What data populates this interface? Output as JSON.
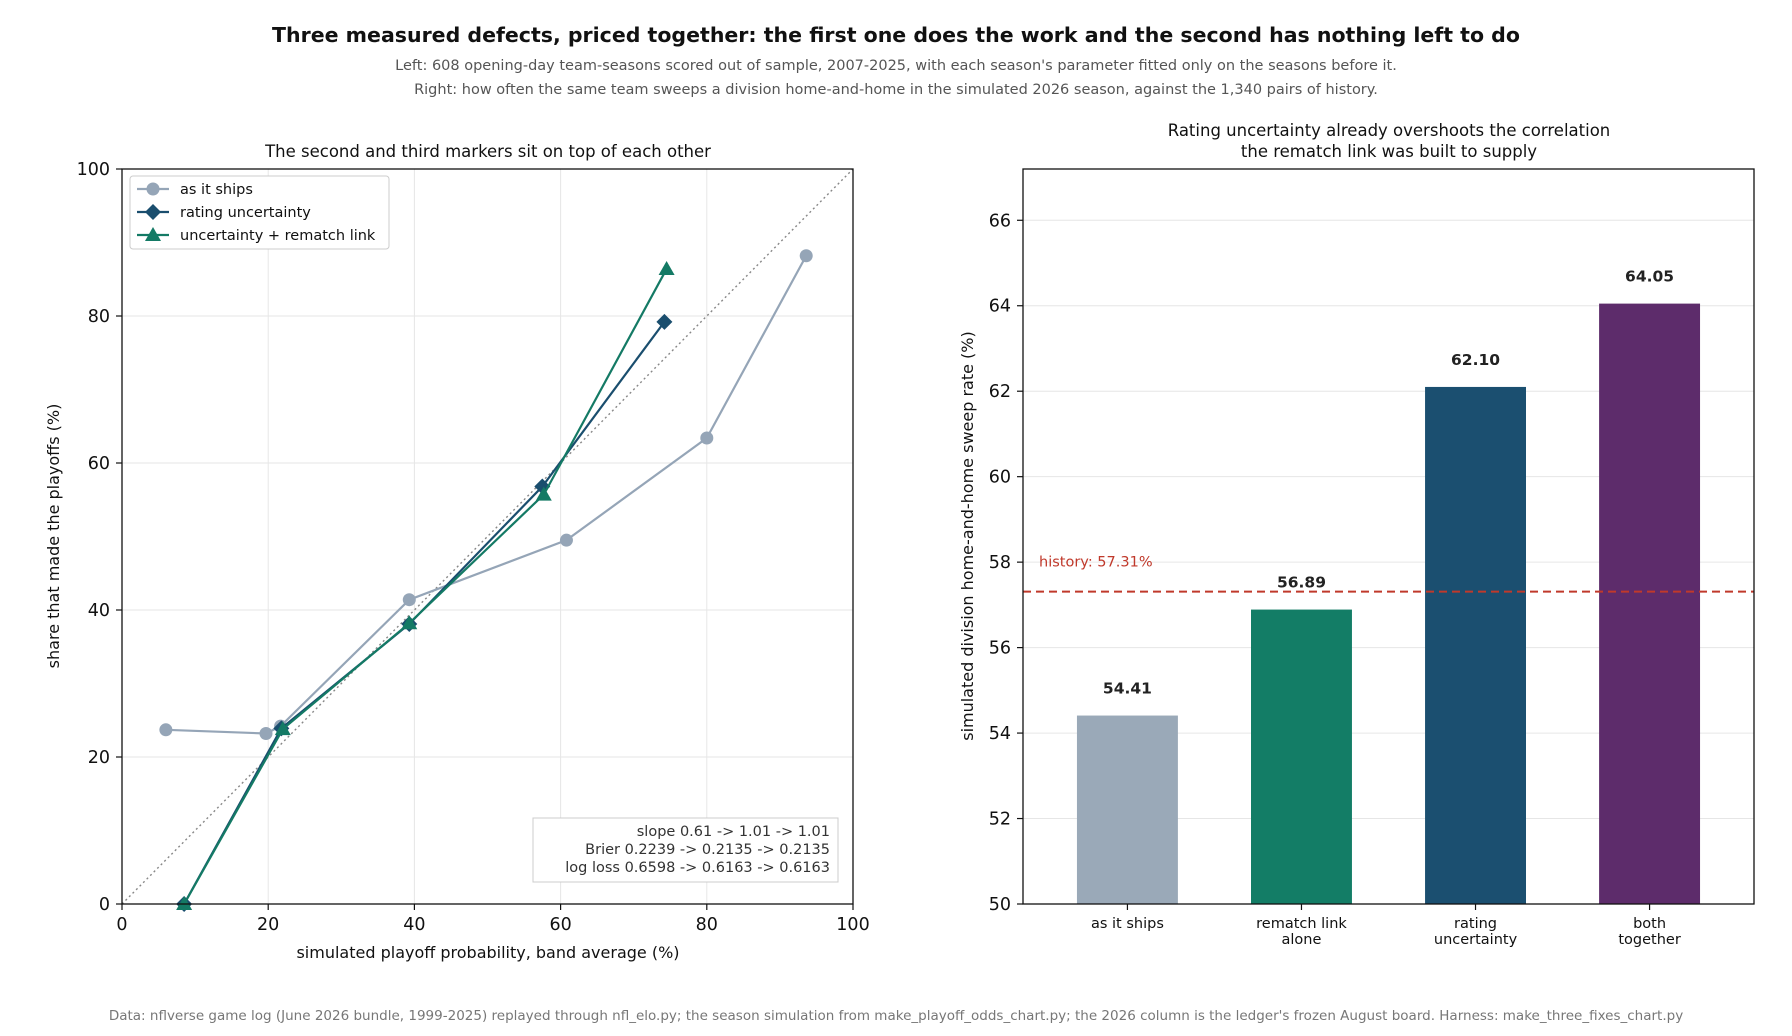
{
  "title": "Three measured defects, priced together: the first one does the work and the second has nothing left to do",
  "subtitle_1": "Left: 608 opening-day team-seasons scored out of sample, 2007-2025, with each season's parameter fitted only on the seasons before it.",
  "subtitle_2": "Right: how often the same team sweeps a division home-and-home in the simulated 2026 season, against the 1,340 pairs of history.",
  "footer": "Data: nflverse game log (June 2026 bundle, 1999-2025) replayed through nfl_elo.py; the season simulation from make_playoff_odds_chart.py; the 2026 column is the ledger's frozen August board. Harness: make_three_fixes_chart.py",
  "chart_data": [
    {
      "type": "line",
      "title": "The second and third markers sit on top of each other",
      "xlabel": "simulated playoff probability, band average (%)",
      "ylabel": "share that made the playoffs (%)",
      "xlim": [
        0,
        100
      ],
      "ylim": [
        0,
        100
      ],
      "xticks": [
        0,
        20,
        40,
        60,
        80,
        100
      ],
      "yticks": [
        0,
        20,
        40,
        60,
        80,
        100
      ],
      "grid": true,
      "legend_position": "top-left",
      "reference_line": "y = x, dotted",
      "series": [
        {
          "name": "as it ships",
          "color": "#95a5b7",
          "marker": "circle",
          "points": [
            [
              6,
              23.7
            ],
            [
              19.7,
              23.2
            ],
            [
              21.7,
              24.2
            ],
            [
              39.3,
              41.4
            ],
            [
              60.8,
              49.5
            ],
            [
              80,
              63.4
            ],
            [
              93.6,
              88.2
            ]
          ]
        },
        {
          "name": "rating uncertainty",
          "color": "#1a4e6e",
          "marker": "diamond",
          "points": [
            [
              8.5,
              0
            ],
            [
              21.8,
              23.9
            ],
            [
              39.3,
              38.1
            ],
            [
              57.5,
              56.8
            ],
            [
              74.2,
              79.2
            ]
          ]
        },
        {
          "name": "uncertainty + rematch link",
          "color": "#147a65",
          "marker": "triangle",
          "points": [
            [
              8.5,
              0
            ],
            [
              22,
              23.8
            ],
            [
              39.3,
              38.2
            ],
            [
              57.7,
              55.7
            ],
            [
              74.5,
              86.4
            ]
          ]
        }
      ],
      "annotation_lines": [
        "slope 0.61  ->  1.01  ->  1.01",
        "Brier 0.2239  ->  0.2135  ->  0.2135",
        "log loss 0.6598  ->  0.6163  ->  0.6163"
      ]
    },
    {
      "type": "bar",
      "title_lines": [
        "Rating uncertainty already overshoots the correlation",
        "the rematch link was built to supply"
      ],
      "ylabel": "simulated division home-and-home sweep rate (%)",
      "ylim": [
        50,
        67.2
      ],
      "yticks": [
        50,
        52,
        54,
        56,
        58,
        60,
        62,
        64,
        66
      ],
      "grid": true,
      "categories": [
        [
          "as it ships"
        ],
        [
          "rematch link",
          "alone"
        ],
        [
          "rating",
          "uncertainty"
        ],
        [
          "both",
          "together"
        ]
      ],
      "values": [
        54.41,
        56.89,
        62.1,
        64.05
      ],
      "value_labels": [
        "54.41",
        "56.89",
        "62.10",
        "64.05"
      ],
      "colors": [
        "#9aa9b8",
        "#137d66",
        "#1b4f70",
        "#5d2c6b"
      ],
      "reference": {
        "label": "history: 57.31%",
        "value": 57.31,
        "color": "#c0392b"
      }
    }
  ]
}
